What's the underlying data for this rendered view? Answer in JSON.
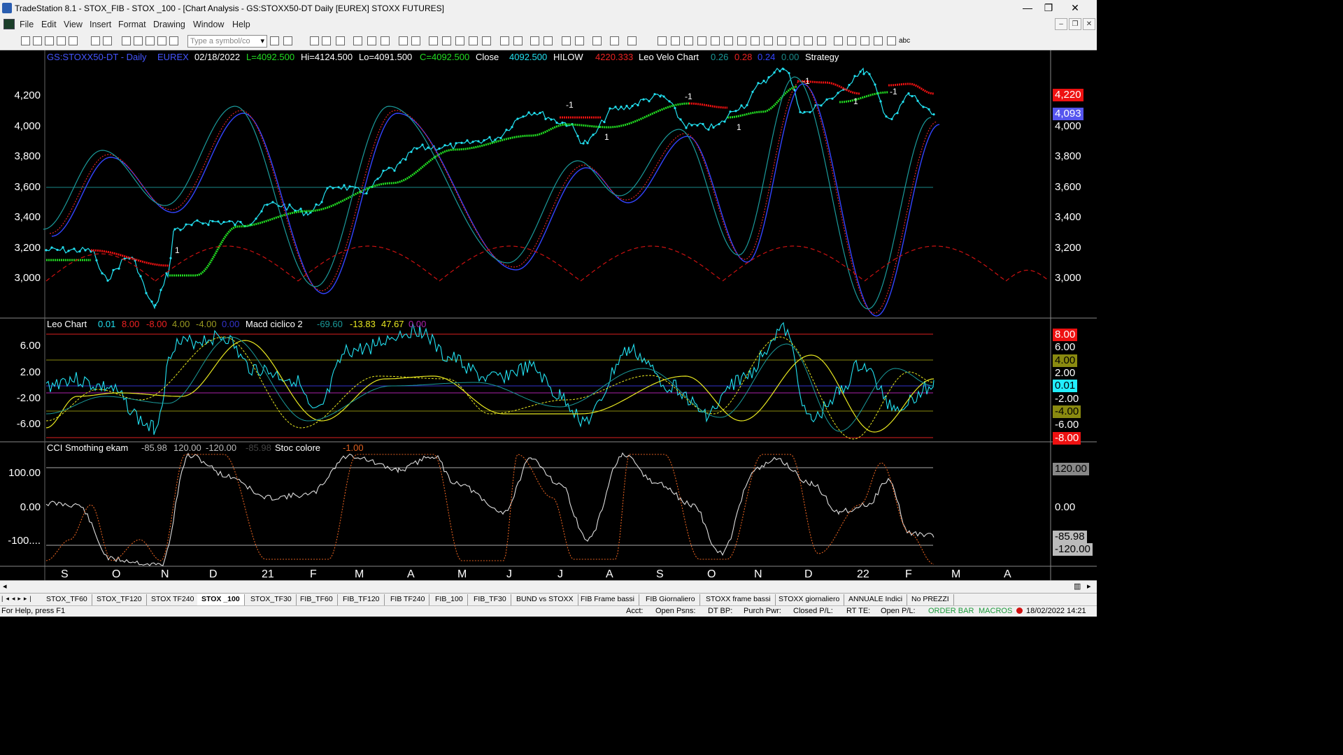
{
  "window": {
    "title": "TradeStation 8.1 - STOX_FIB - STOX _100 - [Chart Analysis - GS:STOXX50-DT  Daily  [EUREX] STOXX FUTURES]",
    "minimize": "—",
    "restore": "❐",
    "close": "✕"
  },
  "menu": {
    "items": [
      "File",
      "Edit",
      "View",
      "Insert",
      "Format",
      "Drawing",
      "Window",
      "Help"
    ],
    "mdi_minimize": "–",
    "mdi_restore": "❐",
    "mdi_close": "✕"
  },
  "toolbar": {
    "symbol_placeholder": "Type a symbol/co",
    "text_tool": "abc"
  },
  "price_pane": {
    "symbol": "GS:STOXX50-DT - Daily",
    "exchange": "EUREX",
    "date": "02/18/2022",
    "last": "L=4092.500",
    "high": "Hi=4124.500",
    "low": "Lo=4091.500",
    "close_c": "C=4092.500",
    "close_label": "Close",
    "close_val": "4092.500",
    "hilow_label": "HILOW",
    "hilow_val": "4220.333",
    "leo_velo_label": "Leo Velo Chart",
    "velo_v1": "0.26",
    "velo_v2": "0.28",
    "velo_v3": "0.24",
    "velo_v4": "0.00",
    "strategy_label": "Strategy",
    "y_ticks": [
      "4,200",
      "4,000",
      "3,800",
      "3,600",
      "3,400",
      "3,200",
      "3,000"
    ],
    "badge_red": "4,220",
    "badge_blue": "4,093",
    "signals": [
      "1",
      "-1",
      "1",
      "-1",
      "1",
      "-1",
      "1",
      "-1"
    ]
  },
  "osc_pane": {
    "leo_label": "Leo Chart",
    "leo_vals": [
      "0.01",
      "8.00",
      "-8.00",
      "4.00",
      "-4.00",
      "0.00"
    ],
    "macd_label": "Macd ciclico 2",
    "macd_vals": [
      "-69.60",
      "-13.83",
      "47.67",
      "0.00"
    ],
    "y_ticks": [
      "6.00",
      "2.00",
      "-2.00",
      "-6.00"
    ],
    "badges": [
      "8.00",
      "6.00",
      "4.00",
      "2.00",
      "0.01",
      "-2.00",
      "-4.00",
      "-6.00",
      "-8.00"
    ]
  },
  "cci_pane": {
    "cci_label": "CCI Smothing ekam",
    "cci_vals": [
      "-85.98",
      "120.00",
      "-120.00",
      "-85.98"
    ],
    "stoc_label": "Stoc colore",
    "stoc_val": "-1.00",
    "y_ticks": [
      "100.00",
      "0.00",
      "-100...."
    ],
    "badges": [
      "120.00",
      "0.00",
      "-85.98",
      "-120.00"
    ]
  },
  "x_axis": {
    "months": [
      "S",
      "O",
      "N",
      "D",
      "21",
      "F",
      "M",
      "A",
      "M",
      "J",
      "J",
      "A",
      "S",
      "O",
      "N",
      "D",
      "22",
      "F",
      "M",
      "A"
    ]
  },
  "tabs": [
    "STOX_TF60",
    "STOX_TF120",
    "STOX TF240",
    "STOX _100",
    "STOX_TF30",
    "FIB_TF60",
    "FIB_TF120",
    "FIB TF240",
    "FIB_100",
    "FIB_TF30",
    "BUND vs STOXX",
    "FIB Frame bassi",
    "FIB Giornaliero",
    "STOXX frame bassi",
    "STOXX giornaliero",
    "ANNUALE Indici",
    "No PREZZI"
  ],
  "status": {
    "help": "For Help, press F1",
    "acct": "Acct:",
    "open_psns": "Open Psns:",
    "dt_bp": "DT BP:",
    "purch_pwr": "Purch Pwr:",
    "closed_pl": "Closed P/L:",
    "rt_te": "RT TE:",
    "open_pl": "Open P/L:",
    "order_bar": "ORDER BAR",
    "macros": "MACROS",
    "datetime": "18/02/2022 14:21"
  },
  "colors": {
    "price": "#22e0f0",
    "hilow_up": "#22dd22",
    "hilow_down": "#ee1111",
    "blue": "#3344ff",
    "red_dotted": "#dd2222",
    "teal": "#1a9a9a",
    "yellow": "#e8e820",
    "white_line": "#dddddd",
    "orange": "#e06020"
  }
}
